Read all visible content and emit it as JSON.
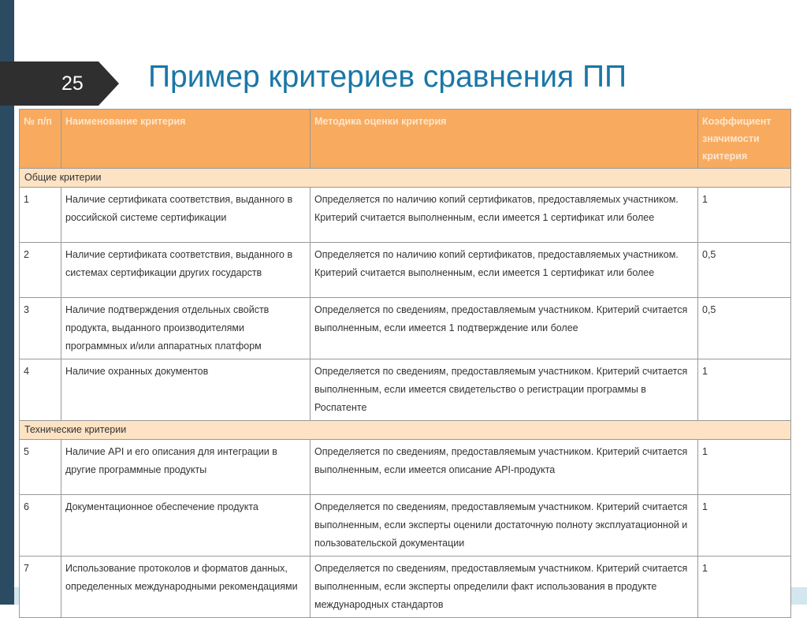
{
  "slide": {
    "number": "25",
    "title": "Пример критериев сравнения ПП"
  },
  "table": {
    "headers": [
      "№ п/п",
      "Наименование критерия",
      "Методика оценки критерия",
      "Коэффициент значимости критерия"
    ],
    "groups": [
      {
        "label": "Общие критерии",
        "rows": [
          {
            "num": "1",
            "name": "Наличие сертификата соответствия, выданного в российской системе сертификации",
            "method": "Определяется по наличию копий сертификатов, предоставляемых участником. Критерий считается выполненным, если имеется 1 сертификат или более",
            "coef": "1"
          },
          {
            "num": "2",
            "name": "Наличие сертификата соответствия, выданного в системах сертификации других государств",
            "method": "Определяется по наличию копий сертификатов, предоставляемых участником. Критерий считается выполненным, если имеется 1 сертификат или более",
            "coef": "0,5"
          },
          {
            "num": "3",
            "name": "Наличие подтверждения отдельных свойств продукта, выданного производителями программных и/или аппаратных платформ",
            "method": "Определяется по сведениям, предоставляемым участником. Критерий считается выполненным, если имеется 1 подтверждение или более",
            "coef": "0,5"
          },
          {
            "num": "4",
            "name": "Наличие охранных документов",
            "method": "Определяется по сведениям, предоставляемым участником. Критерий считается выполненным, если имеется свидетельство о регистрации программы в Роспатенте",
            "coef": "1"
          }
        ]
      },
      {
        "label": "Технические критерии",
        "rows": [
          {
            "num": "5",
            "name": "Наличие API и его описания для интеграции в другие программные продукты",
            "method": "Определяется по сведениям, предоставляемым участником. Критерий считается выполненным, если имеется описание API-продукта",
            "coef": "1"
          },
          {
            "num": "6",
            "name": "Документационное обеспечение продукта",
            "method": "Определяется по сведениям, предоставляемым участником. Критерий считается выполненным, если эксперты оценили достаточную полноту эксплуатационной и пользовательской документации",
            "coef": "1"
          },
          {
            "num": "7",
            "name": "Использование протоколов и форматов данных, определенных международными рекомендациями",
            "method": "Определяется по сведениям, предоставляемым участником. Критерий считается выполненным, если эксперты определили факт использования в продукте международных стандартов",
            "coef": "1"
          }
        ]
      }
    ]
  }
}
